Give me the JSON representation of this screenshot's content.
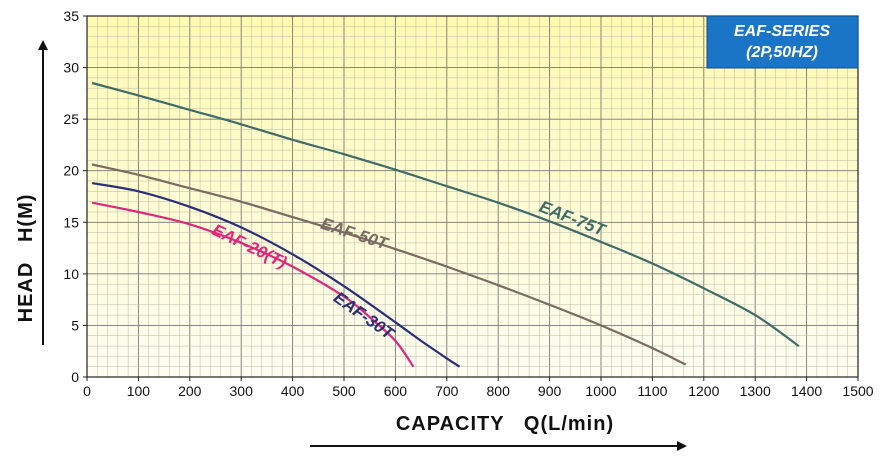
{
  "chart_data": {
    "type": "line",
    "xlabel": "CAPACITY   Q(L/min)",
    "ylabel": "HEAD   H(M)",
    "xlim": [
      0,
      1500
    ],
    "ylim": [
      0,
      35
    ],
    "x_ticks": [
      "0",
      "100",
      "200",
      "300",
      "400",
      "500",
      "600",
      "700",
      "800",
      "900",
      "1000",
      "1100",
      "1200",
      "1300",
      "1400",
      "1500"
    ],
    "y_ticks": [
      "0",
      "5",
      "10",
      "15",
      "20",
      "25",
      "30",
      "35"
    ],
    "grid": "on",
    "legend_box": {
      "line1": "EAF-SERIES",
      "line2": "(2P,50HZ)"
    },
    "series": [
      {
        "name": "EAF-75T",
        "color": "#3f6b68",
        "x": [
          10,
          100,
          200,
          300,
          400,
          500,
          600,
          700,
          800,
          900,
          1000,
          1100,
          1200,
          1300,
          1385
        ],
        "y": [
          28.5,
          27.3,
          25.9,
          24.5,
          23.0,
          21.6,
          20.1,
          18.5,
          16.9,
          15.1,
          13.1,
          11.0,
          8.6,
          6.0,
          3.0
        ]
      },
      {
        "name": "EAF-50T",
        "color": "#7a6a62",
        "x": [
          10,
          100,
          200,
          300,
          400,
          500,
          600,
          700,
          800,
          900,
          1000,
          1100,
          1165
        ],
        "y": [
          20.6,
          19.6,
          18.3,
          17.0,
          15.5,
          14.0,
          12.4,
          10.7,
          8.9,
          7.0,
          5.0,
          2.8,
          1.2
        ]
      },
      {
        "name": "EAF-30T",
        "color": "#2a2f78",
        "x": [
          10,
          100,
          200,
          300,
          400,
          500,
          600,
          650,
          700,
          725
        ],
        "y": [
          18.8,
          18.0,
          16.5,
          14.5,
          11.9,
          8.8,
          5.3,
          3.5,
          1.8,
          1.0
        ]
      },
      {
        "name": "EAF-20(T)",
        "color": "#e0267c",
        "x": [
          10,
          100,
          200,
          300,
          400,
          500,
          550,
          600,
          635
        ],
        "y": [
          16.9,
          16.0,
          14.8,
          13.0,
          10.7,
          7.8,
          5.8,
          3.5,
          1.0
        ]
      }
    ]
  }
}
